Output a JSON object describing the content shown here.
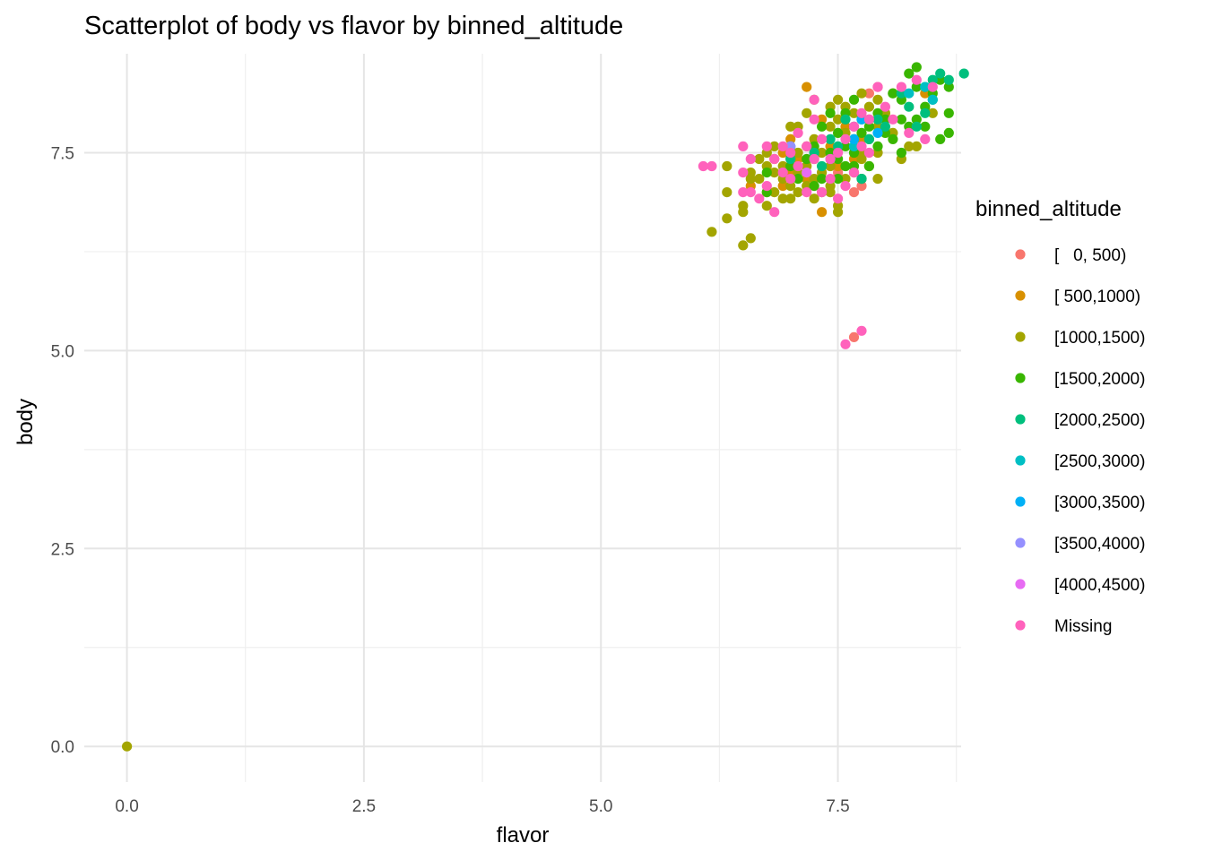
{
  "chart_data": {
    "type": "scatter",
    "title": "Scatterplot of body vs flavor by binned_altitude",
    "xlabel": "flavor",
    "ylabel": "body",
    "xlim": [
      -0.45,
      8.8
    ],
    "ylim": [
      -0.45,
      8.75
    ],
    "x_ticks": [
      0,
      2.5,
      5,
      7.5
    ],
    "x_tick_labels": [
      "0.0",
      "2.5",
      "5.0",
      "7.5"
    ],
    "y_ticks": [
      0,
      2.5,
      5,
      7.5
    ],
    "y_tick_labels": [
      "0.0",
      "2.5",
      "5.0",
      "7.5"
    ],
    "grid": true,
    "legend": {
      "title": "binned_altitude",
      "position": "right",
      "entries": [
        {
          "label": "[   0, 500)",
          "color": "#F8766D"
        },
        {
          "label": "[ 500,1000)",
          "color": "#D89000"
        },
        {
          "label": "[1000,1500)",
          "color": "#A3A500"
        },
        {
          "label": "[1500,2000)",
          "color": "#39B600"
        },
        {
          "label": "[2000,2500)",
          "color": "#00BF7D"
        },
        {
          "label": "[2500,3000)",
          "color": "#00BFC4"
        },
        {
          "label": "[3000,3500)",
          "color": "#00B0F6"
        },
        {
          "label": "[3500,4000)",
          "color": "#9590FF"
        },
        {
          "label": "[4000,4500)",
          "color": "#E76BF3"
        },
        {
          "label": "Missing",
          "color": "#FF62BC"
        }
      ]
    },
    "series": [
      {
        "name": "[   0, 500)",
        "points": [
          [
            7.67,
            5.17
          ],
          [
            7.83,
            8.25
          ],
          [
            7.67,
            7.0
          ],
          [
            7.5,
            7.25
          ],
          [
            7.92,
            8.33
          ],
          [
            7.75,
            7.08
          ]
        ]
      },
      {
        "name": "[ 500,1000)",
        "points": [
          [
            7.17,
            8.33
          ],
          [
            7.33,
            6.75
          ],
          [
            8.42,
            8.25
          ],
          [
            6.83,
            7.42
          ],
          [
            7.0,
            7.25
          ],
          [
            7.25,
            7.5
          ],
          [
            7.42,
            7.58
          ],
          [
            6.92,
            7.08
          ],
          [
            7.58,
            7.83
          ],
          [
            7.75,
            7.67
          ],
          [
            6.75,
            7.0
          ],
          [
            7.08,
            7.42
          ],
          [
            7.5,
            7.33
          ],
          [
            7.17,
            7.17
          ],
          [
            6.58,
            7.08
          ],
          [
            6.92,
            7.5
          ],
          [
            7.33,
            7.92
          ],
          [
            7.0,
            7.67
          ],
          [
            7.67,
            7.42
          ],
          [
            7.83,
            7.92
          ]
        ]
      },
      {
        "name": "[1000,1500)",
        "points": [
          [
            0.0,
            0.0
          ],
          [
            6.17,
            6.5
          ],
          [
            6.5,
            6.33
          ],
          [
            6.58,
            6.42
          ],
          [
            6.33,
            6.67
          ],
          [
            6.5,
            6.75
          ],
          [
            6.33,
            7.0
          ],
          [
            6.5,
            6.83
          ],
          [
            6.33,
            7.33
          ],
          [
            6.58,
            7.25
          ],
          [
            6.75,
            6.83
          ],
          [
            6.83,
            7.0
          ],
          [
            6.92,
            6.92
          ],
          [
            7.0,
            6.92
          ],
          [
            7.08,
            7.0
          ],
          [
            7.17,
            7.08
          ],
          [
            7.25,
            7.17
          ],
          [
            7.33,
            7.25
          ],
          [
            7.42,
            7.33
          ],
          [
            7.5,
            6.75
          ],
          [
            7.5,
            6.83
          ],
          [
            6.75,
            7.5
          ],
          [
            6.83,
            7.25
          ],
          [
            6.92,
            7.33
          ],
          [
            7.0,
            7.42
          ],
          [
            7.08,
            7.5
          ],
          [
            7.17,
            7.58
          ],
          [
            7.25,
            7.67
          ],
          [
            7.33,
            7.5
          ],
          [
            7.42,
            7.83
          ],
          [
            7.5,
            7.92
          ],
          [
            7.58,
            7.75
          ],
          [
            7.67,
            7.58
          ],
          [
            7.75,
            7.5
          ],
          [
            7.83,
            7.67
          ],
          [
            7.92,
            7.83
          ],
          [
            8.0,
            7.92
          ],
          [
            8.08,
            7.75
          ],
          [
            8.17,
            7.42
          ],
          [
            8.25,
            7.58
          ],
          [
            7.92,
            7.17
          ],
          [
            7.83,
            7.33
          ],
          [
            7.75,
            7.42
          ],
          [
            7.67,
            8.0
          ],
          [
            7.58,
            8.08
          ],
          [
            7.5,
            8.17
          ],
          [
            7.42,
            8.08
          ],
          [
            7.25,
            8.17
          ],
          [
            7.17,
            8.0
          ],
          [
            7.0,
            7.83
          ],
          [
            6.92,
            7.17
          ],
          [
            6.83,
            7.58
          ],
          [
            6.75,
            7.33
          ],
          [
            6.67,
            7.17
          ],
          [
            6.67,
            7.42
          ],
          [
            7.08,
            7.83
          ],
          [
            7.33,
            7.0
          ],
          [
            7.42,
            7.08
          ],
          [
            7.58,
            7.17
          ],
          [
            7.67,
            7.25
          ],
          [
            7.83,
            8.08
          ],
          [
            7.92,
            8.17
          ],
          [
            8.0,
            8.0
          ],
          [
            8.08,
            8.25
          ],
          [
            8.33,
            7.58
          ],
          [
            7.75,
            8.25
          ],
          [
            7.08,
            7.25
          ],
          [
            7.17,
            7.33
          ],
          [
            7.25,
            7.42
          ],
          [
            6.58,
            7.17
          ],
          [
            8.5,
            8.0
          ],
          [
            7.92,
            7.5
          ],
          [
            7.0,
            7.08
          ],
          [
            7.25,
            6.92
          ],
          [
            7.42,
            7.0
          ]
        ]
      },
      {
        "name": "[1500,2000)",
        "points": [
          [
            8.33,
            8.58
          ],
          [
            8.25,
            8.5
          ],
          [
            8.67,
            8.33
          ],
          [
            8.58,
            8.42
          ],
          [
            8.67,
            8.0
          ],
          [
            8.67,
            7.75
          ],
          [
            8.58,
            7.67
          ],
          [
            8.33,
            8.33
          ],
          [
            8.17,
            8.17
          ],
          [
            8.08,
            8.25
          ],
          [
            8.0,
            7.92
          ],
          [
            8.25,
            7.83
          ],
          [
            7.92,
            8.0
          ],
          [
            7.83,
            7.83
          ],
          [
            7.75,
            7.75
          ],
          [
            7.67,
            7.5
          ],
          [
            7.58,
            7.58
          ],
          [
            7.67,
            7.67
          ],
          [
            8.08,
            7.67
          ],
          [
            7.5,
            7.42
          ],
          [
            7.42,
            7.5
          ],
          [
            7.58,
            7.33
          ],
          [
            7.75,
            7.17
          ],
          [
            7.67,
            7.33
          ],
          [
            7.5,
            7.75
          ],
          [
            7.58,
            8.0
          ],
          [
            7.42,
            8.0
          ],
          [
            7.17,
            7.42
          ],
          [
            7.08,
            7.17
          ],
          [
            7.0,
            7.33
          ],
          [
            6.75,
            7.25
          ],
          [
            6.75,
            7.0
          ],
          [
            7.25,
            7.08
          ],
          [
            7.83,
            7.33
          ],
          [
            7.92,
            7.58
          ],
          [
            8.0,
            7.75
          ],
          [
            8.17,
            7.92
          ],
          [
            8.42,
            8.08
          ],
          [
            8.5,
            8.25
          ],
          [
            7.75,
            7.92
          ],
          [
            7.33,
            7.83
          ],
          [
            7.25,
            7.58
          ],
          [
            8.33,
            7.92
          ],
          [
            8.42,
            7.83
          ],
          [
            7.67,
            8.17
          ],
          [
            8.17,
            7.5
          ],
          [
            7.5,
            7.17
          ],
          [
            7.33,
            7.17
          ]
        ]
      },
      {
        "name": "[2000,2500)",
        "points": [
          [
            8.83,
            8.5
          ],
          [
            8.58,
            8.5
          ],
          [
            8.5,
            8.42
          ],
          [
            8.67,
            8.42
          ],
          [
            8.42,
            8.33
          ],
          [
            8.5,
            8.17
          ],
          [
            8.33,
            7.83
          ],
          [
            8.0,
            7.83
          ],
          [
            8.25,
            8.08
          ],
          [
            7.75,
            7.17
          ],
          [
            8.17,
            8.25
          ],
          [
            7.92,
            7.92
          ],
          [
            7.83,
            7.67
          ],
          [
            7.58,
            7.92
          ],
          [
            7.67,
            7.83
          ],
          [
            7.42,
            7.67
          ],
          [
            7.5,
            7.58
          ],
          [
            7.33,
            7.33
          ],
          [
            7.25,
            7.5
          ],
          [
            7.0,
            7.42
          ],
          [
            8.42,
            8.0
          ]
        ]
      },
      {
        "name": "[2500,3000)",
        "points": [
          [
            8.5,
            8.17
          ],
          [
            8.42,
            8.33
          ],
          [
            7.67,
            7.58
          ],
          [
            8.25,
            8.25
          ]
        ]
      },
      {
        "name": "[3000,3500)",
        "points": [
          [
            7.42,
            7.42
          ],
          [
            7.75,
            7.92
          ],
          [
            7.67,
            7.67
          ],
          [
            7.92,
            7.75
          ],
          [
            7.0,
            7.58
          ]
        ]
      },
      {
        "name": "[3500,4000)",
        "points": [
          [
            7.0,
            7.58
          ]
        ]
      },
      {
        "name": "[4000,4500)",
        "points": [
          [
            7.17,
            7.25
          ]
        ]
      },
      {
        "name": "Missing",
        "points": [
          [
            7.58,
            5.08
          ],
          [
            7.75,
            5.25
          ],
          [
            6.08,
            7.33
          ],
          [
            6.17,
            7.33
          ],
          [
            6.5,
            7.58
          ],
          [
            6.5,
            7.0
          ],
          [
            6.5,
            7.25
          ],
          [
            6.58,
            7.0
          ],
          [
            6.67,
            6.92
          ],
          [
            6.75,
            7.08
          ],
          [
            6.75,
            7.58
          ],
          [
            6.83,
            6.75
          ],
          [
            6.83,
            7.42
          ],
          [
            6.92,
            7.25
          ],
          [
            7.0,
            7.17
          ],
          [
            7.0,
            7.5
          ],
          [
            7.08,
            7.33
          ],
          [
            7.17,
            7.0
          ],
          [
            7.17,
            7.58
          ],
          [
            7.25,
            8.17
          ],
          [
            7.25,
            7.92
          ],
          [
            7.33,
            7.67
          ],
          [
            7.42,
            7.42
          ],
          [
            7.42,
            7.17
          ],
          [
            7.5,
            7.5
          ],
          [
            7.5,
            6.92
          ],
          [
            7.58,
            7.08
          ],
          [
            7.67,
            7.25
          ],
          [
            7.67,
            7.83
          ],
          [
            7.75,
            7.58
          ],
          [
            7.75,
            8.0
          ],
          [
            7.83,
            7.92
          ],
          [
            7.92,
            8.33
          ],
          [
            8.0,
            8.08
          ],
          [
            8.08,
            7.92
          ],
          [
            8.17,
            8.33
          ],
          [
            8.25,
            7.75
          ],
          [
            8.33,
            8.42
          ],
          [
            8.42,
            7.67
          ],
          [
            8.5,
            8.33
          ],
          [
            7.83,
            7.5
          ],
          [
            7.58,
            7.67
          ],
          [
            7.08,
            7.75
          ],
          [
            6.92,
            7.58
          ],
          [
            6.58,
            7.42
          ],
          [
            7.33,
            7.0
          ],
          [
            7.25,
            7.42
          ]
        ]
      }
    ]
  }
}
